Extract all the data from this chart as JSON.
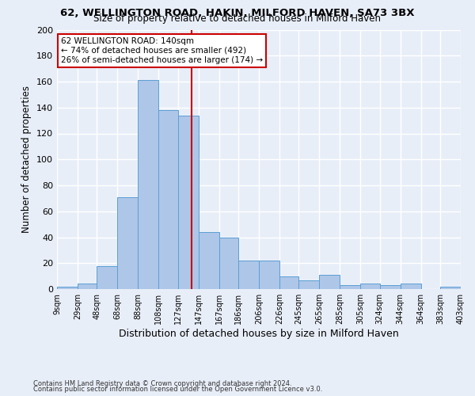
{
  "title1": "62, WELLINGTON ROAD, HAKIN, MILFORD HAVEN, SA73 3BX",
  "title2": "Size of property relative to detached houses in Milford Haven",
  "xlabel": "Distribution of detached houses by size in Milford Haven",
  "ylabel": "Number of detached properties",
  "annotation_line1": "62 WELLINGTON ROAD: 140sqm",
  "annotation_line2": "← 74% of detached houses are smaller (492)",
  "annotation_line3": "26% of semi-detached houses are larger (174) →",
  "property_value": 140,
  "bin_edges": [
    9,
    29,
    48,
    68,
    88,
    108,
    127,
    147,
    167,
    186,
    206,
    226,
    245,
    265,
    285,
    305,
    324,
    344,
    364,
    383,
    403
  ],
  "bar_heights": [
    2,
    4,
    18,
    71,
    161,
    138,
    134,
    44,
    40,
    22,
    22,
    10,
    7,
    11,
    3,
    4,
    3,
    4,
    0,
    2
  ],
  "bar_color": "#aec6e8",
  "bar_edge_color": "#5a9fd4",
  "vline_color": "#cc0000",
  "vline_x": 140,
  "annotation_box_color": "#cc0000",
  "background_color": "#e8eef8",
  "grid_color": "#ffffff",
  "tick_labels": [
    "9sqm",
    "29sqm",
    "48sqm",
    "68sqm",
    "88sqm",
    "108sqm",
    "127sqm",
    "147sqm",
    "167sqm",
    "186sqm",
    "206sqm",
    "226sqm",
    "245sqm",
    "265sqm",
    "285sqm",
    "305sqm",
    "324sqm",
    "344sqm",
    "364sqm",
    "383sqm",
    "403sqm"
  ],
  "ylim": [
    0,
    200
  ],
  "yticks": [
    0,
    20,
    40,
    60,
    80,
    100,
    120,
    140,
    160,
    180,
    200
  ],
  "footnote1": "Contains HM Land Registry data © Crown copyright and database right 2024.",
  "footnote2": "Contains public sector information licensed under the Open Government Licence v3.0."
}
